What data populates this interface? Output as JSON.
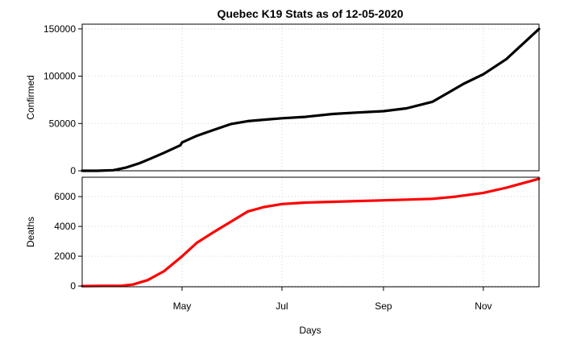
{
  "chart_data": {
    "type": "line",
    "title": "Quebec K19 Stats as of 12-05-2020",
    "xlabel": "Days",
    "x_range": [
      "2020-03-01",
      "2020-12-05"
    ],
    "x_ticks": [
      {
        "label": "May",
        "date": "2020-05-01"
      },
      {
        "label": "Jul",
        "date": "2020-07-01"
      },
      {
        "label": "Sep",
        "date": "2020-09-01"
      },
      {
        "label": "Nov",
        "date": "2020-11-01"
      }
    ],
    "grid": true,
    "panels": [
      {
        "ylabel": "Confirmed",
        "ylim": [
          0,
          155000
        ],
        "y_ticks": [
          0,
          50000,
          100000,
          150000
        ],
        "y_tick_labels": [
          "0",
          "50000",
          "100000",
          "150000"
        ],
        "series": [
          {
            "color": "#000000",
            "points": [
              [
                "2020-03-01",
                0
              ],
              [
                "2020-03-10",
                10
              ],
              [
                "2020-03-20",
                600
              ],
              [
                "2020-03-28",
                3500
              ],
              [
                "2020-04-05",
                8000
              ],
              [
                "2020-04-12",
                13000
              ],
              [
                "2020-04-20",
                19000
              ],
              [
                "2020-04-30",
                27000
              ],
              [
                "2020-05-01",
                30000
              ],
              [
                "2020-05-10",
                37000
              ],
              [
                "2020-05-20",
                43000
              ],
              [
                "2020-05-31",
                49500
              ],
              [
                "2020-06-10",
                52500
              ],
              [
                "2020-06-20",
                54000
              ],
              [
                "2020-07-01",
                55500
              ],
              [
                "2020-07-15",
                57000
              ],
              [
                "2020-08-01",
                60000
              ],
              [
                "2020-08-15",
                61500
              ],
              [
                "2020-09-01",
                63000
              ],
              [
                "2020-09-15",
                66000
              ],
              [
                "2020-10-01",
                73000
              ],
              [
                "2020-10-10",
                82000
              ],
              [
                "2020-10-20",
                92000
              ],
              [
                "2020-11-01",
                102000
              ],
              [
                "2020-11-15",
                118000
              ],
              [
                "2020-12-05",
                150000
              ]
            ]
          }
        ]
      },
      {
        "ylabel": "Deaths",
        "ylim": [
          -50,
          7300
        ],
        "y_ticks": [
          0,
          2000,
          4000,
          6000
        ],
        "y_tick_labels": [
          "0",
          "2000",
          "4000",
          "6000"
        ],
        "series": [
          {
            "color": "#ff0000",
            "points": [
              [
                "2020-03-01",
                0
              ],
              [
                "2020-03-25",
                20
              ],
              [
                "2020-04-01",
                100
              ],
              [
                "2020-04-10",
                400
              ],
              [
                "2020-04-20",
                1000
              ],
              [
                "2020-05-01",
                2000
              ],
              [
                "2020-05-10",
                2900
              ],
              [
                "2020-05-20",
                3600
              ],
              [
                "2020-06-01",
                4400
              ],
              [
                "2020-06-10",
                5000
              ],
              [
                "2020-06-20",
                5300
              ],
              [
                "2020-07-01",
                5500
              ],
              [
                "2020-07-15",
                5600
              ],
              [
                "2020-08-01",
                5650
              ],
              [
                "2020-09-01",
                5750
              ],
              [
                "2020-10-01",
                5850
              ],
              [
                "2020-10-15",
                6000
              ],
              [
                "2020-11-01",
                6250
              ],
              [
                "2020-11-15",
                6600
              ],
              [
                "2020-12-05",
                7200
              ]
            ]
          }
        ]
      }
    ]
  }
}
